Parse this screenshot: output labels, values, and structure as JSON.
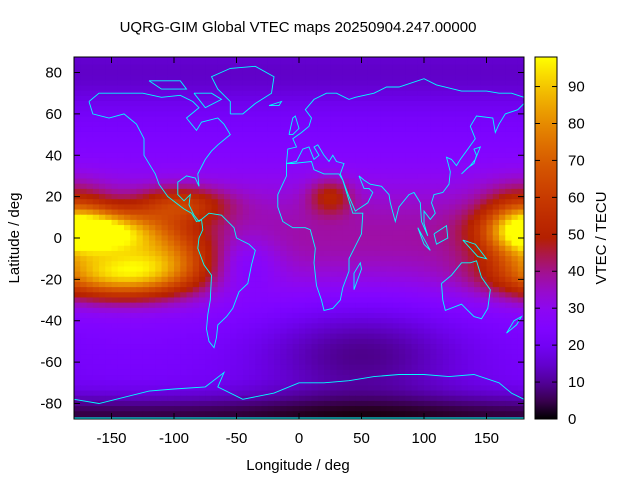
{
  "chart_data": {
    "type": "heatmap",
    "title": "UQRG-GIM Global VTEC maps 20250904.247.00000",
    "xlabel": "Longitude / deg",
    "ylabel": "Latitude / deg",
    "colorbar_label": "VTEC / TECU",
    "xlim": [
      -180,
      180
    ],
    "ylim": [
      -87.5,
      87.5
    ],
    "xticks": [
      -150,
      -100,
      -50,
      0,
      50,
      100,
      150
    ],
    "yticks": [
      -80,
      -60,
      -40,
      -20,
      0,
      20,
      40,
      60,
      80
    ],
    "clim": [
      0,
      98
    ],
    "cbar_ticks": [
      0,
      10,
      20,
      30,
      40,
      50,
      60,
      70,
      80,
      90
    ],
    "colormap": "gnuplot palette rgbformulae 7,5,15 (black-purple-red-orange-yellow)",
    "overlay": "coastlines",
    "overlay_color": "#00ffff",
    "grid": false,
    "grid_step_deg": {
      "lon": 5,
      "lat": 2.5
    },
    "features": [
      {
        "lon": -155,
        "lat": 3,
        "value": 92,
        "desc": "equatorial anomaly crest north, Pacific"
      },
      {
        "lon": -150,
        "lat": -18,
        "value": 90,
        "desc": "equatorial anomaly crest south, Pacific"
      },
      {
        "lon": -120,
        "lat": -10,
        "value": 68,
        "desc": "southern crest extension"
      },
      {
        "lon": -90,
        "lat": 15,
        "value": 60,
        "desc": "northern crest extension toward Central America"
      },
      {
        "lon": 180,
        "lat": 5,
        "value": 72,
        "desc": "western Pacific enhancement"
      },
      {
        "lon": 25,
        "lat": 20,
        "value": 48,
        "desc": "local enhancement over North Africa"
      },
      {
        "lon": -45,
        "lat": -12,
        "value": 10,
        "desc": "low near Brazil"
      },
      {
        "lon": 50,
        "lat": -62,
        "value": 8,
        "desc": "southern high-latitude trough"
      },
      {
        "lon": 0,
        "lat": -85,
        "value": 1,
        "desc": "minimum near Antarctica"
      }
    ]
  }
}
